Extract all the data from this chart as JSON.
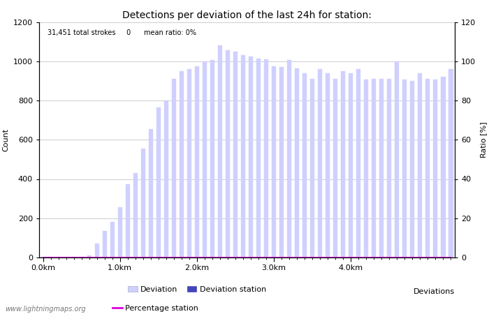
{
  "title": "Detections per deviation of the last 24h for station:",
  "annotation": "31,451 total strokes     0      mean ratio: 0%",
  "xlabel": "Deviations",
  "ylabel_left": "Count",
  "ylabel_right": "Ratio [%]",
  "ylim_left": [
    0,
    1200
  ],
  "ylim_right": [
    0,
    120
  ],
  "yticks_left": [
    0,
    200,
    400,
    600,
    800,
    1000,
    1200
  ],
  "yticks_right": [
    0,
    20,
    40,
    60,
    80,
    100,
    120
  ],
  "xtick_labels": [
    "0.0km",
    "1.0km",
    "2.0km",
    "3.0km",
    "4.0km"
  ],
  "xtick_positions": [
    0,
    10,
    20,
    30,
    40
  ],
  "bar_color": "#d0d0ff",
  "bar_color_station": "#4444bb",
  "line_color": "#dd00dd",
  "watermark": "www.lightningmaps.org",
  "deviation_values": [
    5,
    2,
    2,
    2,
    3,
    5,
    10,
    70,
    135,
    180,
    255,
    375,
    430,
    555,
    655,
    765,
    795,
    910,
    950,
    960,
    975,
    1000,
    1005,
    1080,
    1055,
    1050,
    1030,
    1025,
    1015,
    1010,
    975,
    970,
    1005,
    965,
    940,
    910,
    960,
    940,
    910,
    950,
    940,
    960,
    905,
    910,
    910,
    910,
    1000,
    905,
    900,
    940,
    910,
    905,
    920,
    960
  ],
  "station_values": [
    0,
    0,
    0,
    0,
    0,
    0,
    0,
    0,
    0,
    0,
    0,
    0,
    0,
    0,
    0,
    0,
    0,
    0,
    0,
    0,
    0,
    0,
    0,
    0,
    0,
    0,
    0,
    0,
    0,
    0,
    0,
    0,
    0,
    0,
    0,
    0,
    0,
    0,
    0,
    0,
    0,
    0,
    0,
    0,
    0,
    0,
    0,
    0,
    0,
    0,
    0,
    0,
    0,
    0
  ],
  "n_bars": 54,
  "bar_width": 0.55,
  "background_color": "#ffffff",
  "grid_color": "#bbbbbb",
  "title_fontsize": 10,
  "label_fontsize": 8,
  "tick_fontsize": 8,
  "legend_fontsize": 8,
  "fig_width": 7.0,
  "fig_height": 4.5,
  "fig_dpi": 100
}
